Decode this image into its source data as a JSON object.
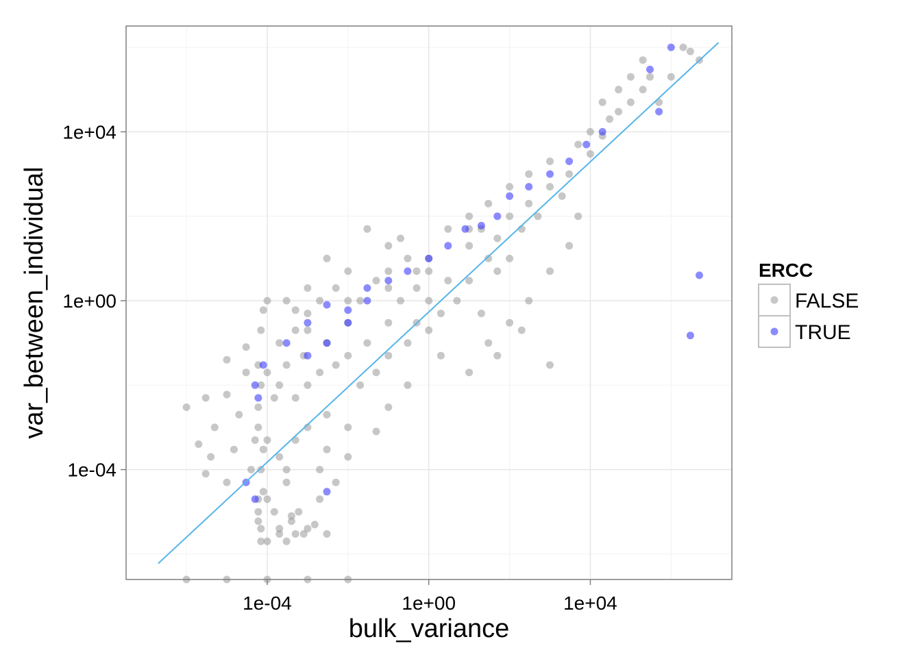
{
  "chart_data": {
    "type": "scatter",
    "xlabel": "bulk_variance",
    "ylabel": "var_between_individual",
    "x_scale": "log10",
    "y_scale": "log10",
    "xlim": [
      3.2e-08,
      32000000.0
    ],
    "ylim": [
      2.5e-07,
      3200000.0
    ],
    "x_ticks": [
      {
        "value": 0.0001,
        "label": "1e-04"
      },
      {
        "value": 1,
        "label": "1e+00"
      },
      {
        "value": 10000,
        "label": "1e+04"
      }
    ],
    "y_ticks": [
      {
        "value": 0.0001,
        "label": "1e-04"
      },
      {
        "value": 1,
        "label": "1e+00"
      },
      {
        "value": 10000,
        "label": "1e+04"
      }
    ],
    "grid": true,
    "legend": {
      "title": "ERCC",
      "position": "right",
      "entries": [
        {
          "label": "FALSE",
          "color": "#999999"
        },
        {
          "label": "TRUE",
          "color": "#2b2bff"
        }
      ]
    },
    "trend_line": {
      "color": "#56b4e9",
      "x": [
        2e-07,
        15000000.0
      ],
      "y": [
        6e-07,
        1300000.0
      ]
    },
    "series": [
      {
        "name": "FALSE",
        "color": "#999999",
        "points": [
          [
            1e-06,
            0.003
          ],
          [
            2e-06,
            0.0004
          ],
          [
            3e-06,
            0.005
          ],
          [
            5e-06,
            0.001
          ],
          [
            4e-06,
            0.0002
          ],
          [
            1e-05,
            0.006
          ],
          [
            2e-05,
            0.002
          ],
          [
            1.5e-05,
            0.0003
          ],
          [
            3e-05,
            0.02
          ],
          [
            5e-05,
            0.0005
          ],
          [
            3e-06,
            8e-05
          ],
          [
            1e-05,
            5e-05
          ],
          [
            4e-05,
            0.0001
          ],
          [
            6e-05,
            0.003
          ],
          [
            6e-05,
            0.03
          ],
          [
            7e-05,
            2e-06
          ],
          [
            6e-05,
            1e-05
          ],
          [
            7e-05,
            0.0001
          ],
          [
            6e-05,
            0.001
          ],
          [
            7e-05,
            4e-06
          ],
          [
            6e-05,
            2e-05
          ],
          [
            8e-05,
            0.0003
          ],
          [
            7e-05,
            0.01
          ],
          [
            8e-05,
            3e-05
          ],
          [
            6e-05,
            6e-06
          ],
          [
            0.0001,
            2e-06
          ],
          [
            0.0002,
            3e-06
          ],
          [
            0.0003,
            2e-06
          ],
          [
            0.0005,
            3e-06
          ],
          [
            0.001,
            4e-06
          ],
          [
            0.00015,
            1e-05
          ],
          [
            0.0003,
            5e-05
          ],
          [
            0.0001,
            2e-05
          ],
          [
            0.0004,
            8e-06
          ],
          [
            0.0006,
            1e-05
          ],
          [
            0.0005,
            0.0005
          ],
          [
            0.0002,
            0.0002
          ],
          [
            0.001,
            0.001
          ],
          [
            0.003,
            0.002
          ],
          [
            0.002,
            2e-05
          ],
          [
            0.0002,
            0.01
          ],
          [
            0.0003,
            0.03
          ],
          [
            0.0005,
            0.005
          ],
          [
            0.001,
            0.01
          ],
          [
            0.00015,
            0.005
          ],
          [
            0.0001,
            0.02
          ],
          [
            0.0002,
            0.1
          ],
          [
            0.0005,
            0.2
          ],
          [
            0.0008,
            0.05
          ],
          [
            0.001,
            0.5
          ],
          [
            0.002,
            0.02
          ],
          [
            0.003,
            0.1
          ],
          [
            0.005,
            0.03
          ],
          [
            0.01,
            0.05
          ],
          [
            0.02,
            0.01
          ],
          [
            0.01,
            0.3
          ],
          [
            0.03,
            0.1
          ],
          [
            0.05,
            0.02
          ],
          [
            0.1,
            0.05
          ],
          [
            0.02,
            1
          ],
          [
            0.005,
            2
          ],
          [
            0.002,
            1
          ],
          [
            0.001,
            2
          ],
          [
            0.0003,
            1
          ],
          [
            0.0005,
            0.6
          ],
          [
            0.1,
            0.3
          ],
          [
            0.3,
            0.1
          ],
          [
            0.5,
            0.3
          ],
          [
            1,
            0.2
          ],
          [
            2,
            0.05
          ],
          [
            0.2,
            1
          ],
          [
            0.5,
            2
          ],
          [
            1,
            1
          ],
          [
            2,
            0.5
          ],
          [
            3,
            3
          ],
          [
            0.1,
            5
          ],
          [
            0.3,
            10
          ],
          [
            0.05,
            3
          ],
          [
            0.01,
            5
          ],
          [
            0.003,
            10
          ],
          [
            5,
            1
          ],
          [
            10,
            3
          ],
          [
            20,
            0.5
          ],
          [
            30,
            10
          ],
          [
            50,
            5
          ],
          [
            10,
            20
          ],
          [
            20,
            50
          ],
          [
            50,
            30
          ],
          [
            100,
            100
          ],
          [
            200,
            50
          ],
          [
            100,
            10
          ],
          [
            300,
            200
          ],
          [
            500,
            100
          ],
          [
            1000,
            500
          ],
          [
            2000,
            300
          ],
          [
            1000,
            2000
          ],
          [
            3000,
            1000
          ],
          [
            5000,
            5000
          ],
          [
            10000,
            3000
          ],
          [
            20000,
            8000
          ],
          [
            30000,
            20000
          ],
          [
            50000,
            30000
          ],
          [
            100000,
            50000
          ],
          [
            200000,
            100000
          ],
          [
            300000,
            200000
          ],
          [
            500000,
            50000
          ],
          [
            3000000,
            800000.0
          ],
          [
            1000000.0,
            200000.0
          ],
          [
            2000000.0,
            1000000.0
          ],
          [
            5000000.0,
            500000.0
          ],
          [
            200000.0,
            500000.0
          ],
          [
            100000.0,
            200000.0
          ],
          [
            50000,
            100000
          ],
          [
            20000,
            50000
          ],
          [
            10000,
            10000
          ],
          [
            300,
            1000
          ],
          [
            100,
            500
          ],
          [
            30,
            200
          ],
          [
            10,
            100
          ],
          [
            3,
            50
          ],
          [
            1,
            10
          ],
          [
            0.5,
            5
          ],
          [
            0.2,
            30
          ],
          [
            0.1,
            20
          ],
          [
            0.03,
            50
          ],
          [
            30,
            0.1
          ],
          [
            100,
            0.3
          ],
          [
            300,
            1
          ],
          [
            1000,
            5
          ],
          [
            3000,
            20
          ],
          [
            10,
            0.02
          ],
          [
            50,
            0.05
          ],
          [
            200,
            0.2
          ],
          [
            1000,
            0.03
          ],
          [
            5000,
            100
          ],
          [
            0.003,
            0.0003
          ],
          [
            0.01,
            0.001
          ],
          [
            0.1,
            0.003
          ],
          [
            0.05,
            0.0008
          ],
          [
            0.3,
            0.01
          ],
          [
            0.0001,
            0.0005
          ],
          [
            0.0003,
            0.0001
          ],
          [
            0.002,
            0.0001
          ],
          [
            0.005,
            5e-05
          ],
          [
            0.01,
            0.0002
          ],
          [
            0.0002,
            4e-06
          ],
          [
            0.0004,
            6e-06
          ],
          [
            0.0008,
            3e-06
          ],
          [
            0.0015,
            5e-06
          ],
          [
            0.003,
            3e-06
          ],
          [
            1e-05,
            0.04
          ],
          [
            3e-05,
            0.08
          ],
          [
            7e-05,
            0.2
          ],
          [
            8e-05,
            0.6
          ],
          [
            0.0001,
            1
          ],
          [
            0.001,
            0.2
          ],
          [
            0.01,
            1
          ],
          [
            0.1,
            2
          ],
          [
            1,
            5
          ],
          [
            10,
            50
          ],
          [
            1e-06,
            2e-07
          ],
          [
            1e-05,
            2e-07
          ],
          [
            0.0001,
            2e-07
          ],
          [
            0.001,
            2e-07
          ],
          [
            0.01,
            2e-07
          ]
        ]
      },
      {
        "name": "TRUE",
        "color": "#2b2bff",
        "points": [
          [
            3000000.0,
            0.15
          ],
          [
            5000000.0,
            4
          ],
          [
            1000000.0,
            1000000.0
          ],
          [
            300000,
            300000.0
          ],
          [
            500000,
            30000
          ],
          [
            20000,
            10000
          ],
          [
            8000,
            5000
          ],
          [
            3000,
            2000
          ],
          [
            1000,
            1000
          ],
          [
            300,
            500
          ],
          [
            100,
            300
          ],
          [
            50,
            100
          ],
          [
            20,
            60
          ],
          [
            8,
            50
          ],
          [
            3,
            20
          ],
          [
            1,
            10
          ],
          [
            0.3,
            5
          ],
          [
            0.1,
            3
          ],
          [
            0.03,
            1
          ],
          [
            0.01,
            0.3
          ],
          [
            0.003,
            0.1
          ],
          [
            0.001,
            0.05
          ],
          [
            0.001,
            0.3
          ],
          [
            0.0003,
            0.1
          ],
          [
            8e-05,
            0.03
          ],
          [
            6e-05,
            0.005
          ],
          [
            5e-05,
            0.01
          ],
          [
            5e-05,
            2e-05
          ],
          [
            3e-05,
            5e-05
          ],
          [
            0.003,
            3e-05
          ],
          [
            0.01,
            0.6
          ],
          [
            0.03,
            2
          ],
          [
            0.003,
            0.8
          ]
        ]
      }
    ]
  }
}
